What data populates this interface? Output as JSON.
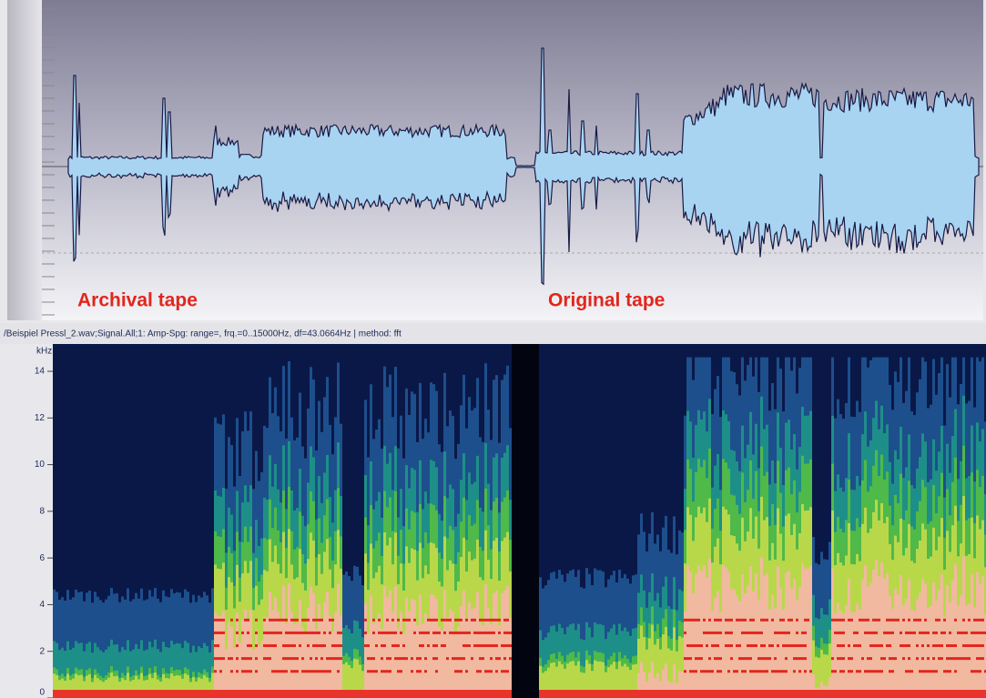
{
  "waveform": {
    "labels": [
      "Archival tape",
      "Original tape"
    ]
  },
  "status_line": "/Beispiel Pressl_2.wav;Signal.All;1: Amp-Spg: range=, frq.=0..15000Hz, df=43.0664Hz | method: fft",
  "spectrogram": {
    "unit": "kHz",
    "yticks": [
      14,
      12,
      10,
      8,
      6,
      4,
      2,
      0
    ]
  }
}
